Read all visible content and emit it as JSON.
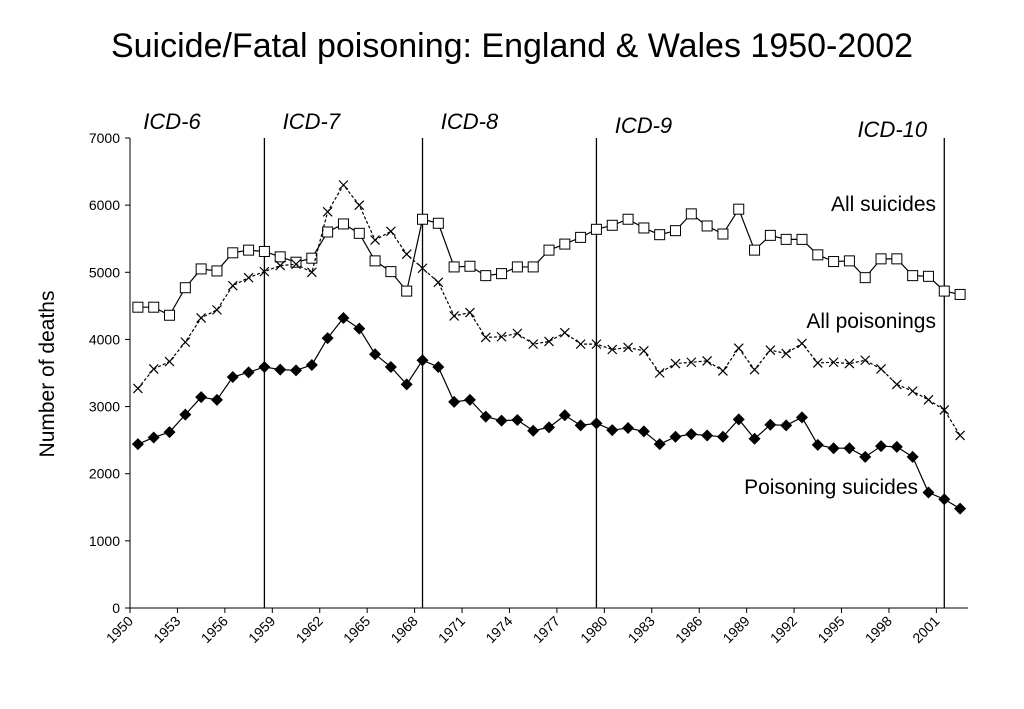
{
  "chart_data": {
    "type": "line",
    "title": "Suicide/Fatal poisoning: England & Wales 1950-2002",
    "y_label": "Number of deaths",
    "x": [
      1950,
      1951,
      1952,
      1953,
      1954,
      1955,
      1956,
      1957,
      1958,
      1959,
      1960,
      1961,
      1962,
      1963,
      1964,
      1965,
      1966,
      1967,
      1968,
      1969,
      1970,
      1971,
      1972,
      1973,
      1974,
      1975,
      1976,
      1977,
      1978,
      1979,
      1980,
      1981,
      1982,
      1983,
      1984,
      1985,
      1986,
      1987,
      1988,
      1989,
      1990,
      1991,
      1992,
      1993,
      1994,
      1995,
      1996,
      1997,
      1998,
      1999,
      2000,
      2001,
      2002
    ],
    "series": [
      {
        "name": "All suicides",
        "color": "#000000",
        "marker": "square",
        "dash": false,
        "values": [
          4480,
          4480,
          4360,
          4770,
          5050,
          5020,
          5290,
          5330,
          5310,
          5230,
          5150,
          5210,
          5600,
          5720,
          5580,
          5170,
          5010,
          4720,
          5790,
          5730,
          5080,
          5090,
          4950,
          4980,
          5080,
          5080,
          5330,
          5420,
          5520,
          5640,
          5700,
          5790,
          5660,
          5560,
          5620,
          5870,
          5690,
          5570,
          5940,
          5330,
          5550,
          5490,
          5490,
          5260,
          5160,
          5170,
          4920,
          5200,
          5200,
          4950,
          4940,
          4720,
          4670
        ]
      },
      {
        "name": "All poisonings",
        "color": "#000000",
        "marker": "cross",
        "dash": true,
        "values": [
          3270,
          3560,
          3670,
          3960,
          4320,
          4440,
          4800,
          4920,
          5010,
          5100,
          5120,
          5000,
          5900,
          6300,
          6000,
          5480,
          5610,
          5270,
          5060,
          4850,
          4350,
          4400,
          4030,
          4040,
          4090,
          3930,
          3970,
          4100,
          3930,
          3930,
          3850,
          3880,
          3830,
          3500,
          3640,
          3660,
          3680,
          3530,
          3870,
          3550,
          3840,
          3790,
          3940,
          3650,
          3660,
          3640,
          3690,
          3560,
          3330,
          3230,
          3100,
          2950,
          2570
        ]
      },
      {
        "name": "Poisoning suicides",
        "color": "#000000",
        "marker": "diamond",
        "dash": false,
        "values": [
          2440,
          2540,
          2620,
          2880,
          3140,
          3100,
          3440,
          3510,
          3590,
          3550,
          3540,
          3620,
          4020,
          4320,
          4160,
          3780,
          3590,
          3330,
          3690,
          3590,
          3070,
          3100,
          2850,
          2790,
          2800,
          2640,
          2690,
          2870,
          2720,
          2750,
          2650,
          2680,
          2630,
          2440,
          2550,
          2590,
          2570,
          2550,
          2810,
          2520,
          2730,
          2720,
          2840,
          2430,
          2380,
          2380,
          2250,
          2410,
          2400,
          2250,
          1720,
          1620,
          1480
        ]
      }
    ],
    "revisions": [
      {
        "label": "ICD-6"
      },
      {
        "label": "ICD-7",
        "year": 1958
      },
      {
        "label": "ICD-8",
        "year": 1968
      },
      {
        "label": "ICD-9",
        "year": 1979
      },
      {
        "label": "ICD-10",
        "year": 2001
      }
    ],
    "xlim": [
      1949.5,
      2002.5
    ],
    "xticks": [
      1950,
      1953,
      1956,
      1959,
      1962,
      1965,
      1968,
      1971,
      1974,
      1977,
      1980,
      1983,
      1986,
      1989,
      1992,
      1995,
      1998,
      2001
    ],
    "ylim": [
      0,
      7000
    ],
    "yticks": [
      0,
      1000,
      2000,
      3000,
      4000,
      5000,
      6000,
      7000
    ]
  }
}
